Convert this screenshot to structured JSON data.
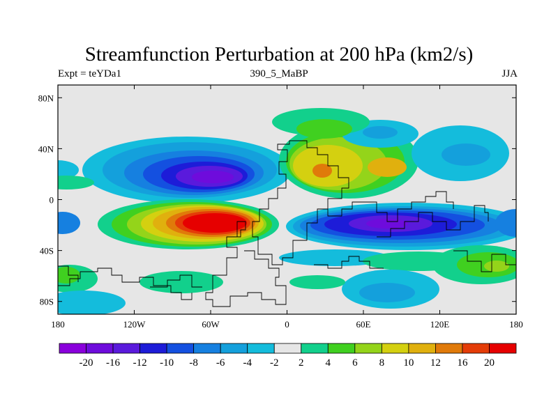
{
  "chart_data": {
    "type": "heatmap",
    "title": "Streamfunction Perturbation at 200 hPa (km2/s)",
    "left_label": "Expt = teYDa1",
    "center_label": "390_5_MaBP",
    "right_label": "JJA",
    "x_ticks": [
      {
        "value": -180,
        "label": "180"
      },
      {
        "value": -120,
        "label": "120W"
      },
      {
        "value": -60,
        "label": "60W"
      },
      {
        "value": 0,
        "label": "0"
      },
      {
        "value": 60,
        "label": "60E"
      },
      {
        "value": 120,
        "label": "120E"
      },
      {
        "value": 180,
        "label": "180"
      }
    ],
    "y_ticks": [
      {
        "value": 80,
        "label": "80N"
      },
      {
        "value": 40,
        "label": "40N"
      },
      {
        "value": 0,
        "label": "0"
      },
      {
        "value": -40,
        "label": "40S"
      },
      {
        "value": -80,
        "label": "80S"
      }
    ],
    "xlim": [
      -180,
      180
    ],
    "ylim": [
      -90,
      90
    ],
    "colorbar": {
      "labels": [
        "-20",
        "-16",
        "-12",
        "-10",
        "-8",
        "-6",
        "-4",
        "-2",
        "2",
        "4",
        "6",
        "8",
        "10",
        "12",
        "16",
        "20"
      ],
      "colors": [
        "#8a00dc",
        "#6e0cdc",
        "#5a1adc",
        "#1d1cd8",
        "#1450e0",
        "#1680e0",
        "#14a0dc",
        "#14bcdc",
        "#e6e6e6",
        "#12d08c",
        "#40d020",
        "#94d41a",
        "#d4d010",
        "#e0b00e",
        "#e07a0a",
        "#e43c08",
        "#e60000"
      ]
    },
    "field_description": "Strong negative centre near 60W/25N, strong positive centre near 60W/20S, positive over Asia/Mediterranean near 40E/35N, negative band over Indian Ocean/Australia near 80E/20S"
  }
}
